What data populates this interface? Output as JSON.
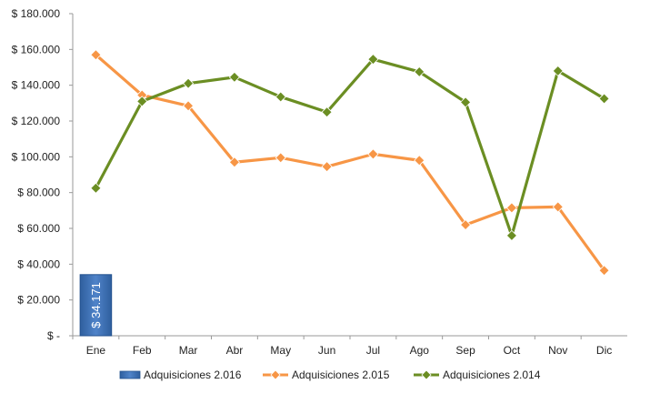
{
  "chart_data": {
    "type": "line",
    "categories": [
      "Ene",
      "Feb",
      "Mar",
      "Abr",
      "May",
      "Jun",
      "Jul",
      "Ago",
      "Sep",
      "Oct",
      "Nov",
      "Dic"
    ],
    "y_tick_labels": [
      "$ -",
      "$ 20.000",
      "$ 40.000",
      "$ 60.000",
      "$ 80.000",
      "$ 100.000",
      "$ 120.000",
      "$ 140.000",
      "$ 160.000",
      "$ 180.000"
    ],
    "ylim": [
      0,
      180000
    ],
    "grid": false,
    "legend_position": "bottom",
    "series": [
      {
        "name": "Adquisiciones 2.016",
        "type": "bar",
        "color": "#3a6cb0",
        "values": [
          34171,
          null,
          null,
          null,
          null,
          null,
          null,
          null,
          null,
          null,
          null,
          null
        ],
        "data_labels": [
          "$ 34.171"
        ]
      },
      {
        "name": "Adquisiciones 2.015",
        "type": "line",
        "marker": "diamond",
        "color": "#f79646",
        "values": [
          157000,
          134500,
          128500,
          97000,
          99500,
          94500,
          101500,
          98000,
          62000,
          71500,
          72000,
          36500
        ]
      },
      {
        "name": "Adquisiciones 2.014",
        "type": "line",
        "marker": "diamond",
        "color": "#6b8e23",
        "values": [
          82500,
          131000,
          141000,
          144500,
          133500,
          125000,
          154500,
          147500,
          130500,
          56000,
          148000,
          132500
        ]
      }
    ]
  }
}
